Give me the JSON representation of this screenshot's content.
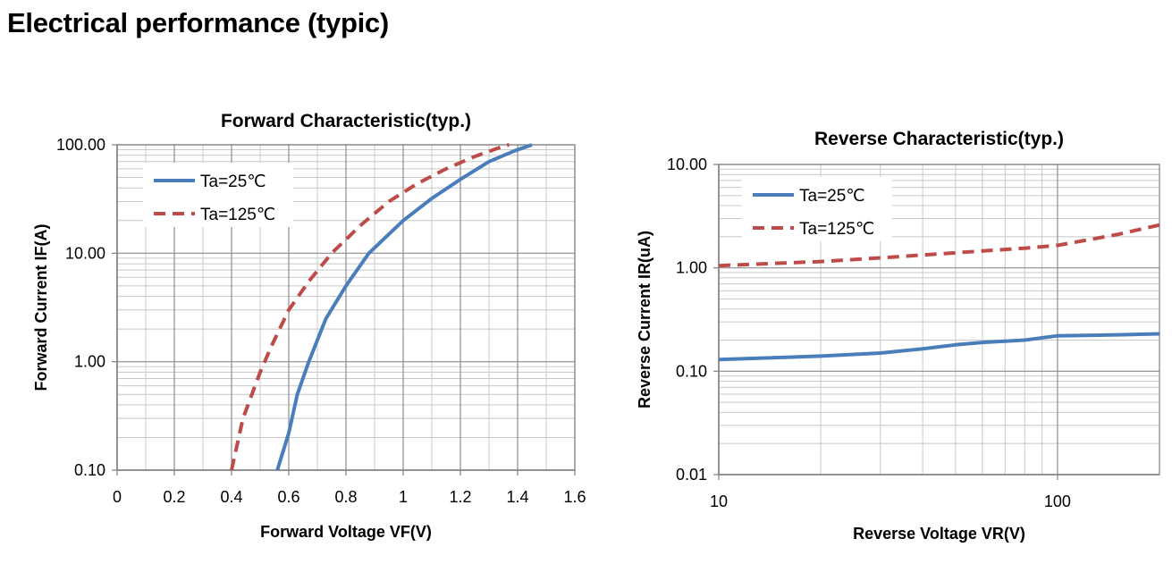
{
  "page": {
    "title": "Electrical performance (typic)"
  },
  "colors": {
    "series_25": "#4a7ebb",
    "series_125": "#be4b48",
    "grid_major": "#8c8c8c",
    "grid_minor": "#c8c8c8"
  },
  "chart_data": [
    {
      "type": "line",
      "title": "Forward Characteristic(typ.)",
      "xlabel": "Forward Voltage VF(V)",
      "ylabel": "Forward Current IF(A)",
      "xlim": [
        0,
        1.6
      ],
      "ylim": [
        0.1,
        100
      ],
      "yscale": "log",
      "grid": true,
      "legend_position": "top-left",
      "x_ticks": [
        0,
        0.2,
        0.4,
        0.6,
        0.8,
        1.0,
        1.2,
        1.4,
        1.6
      ],
      "x_tick_labels": [
        "0",
        "0.2",
        "0.4",
        "0.6",
        "0.8",
        "1",
        "1.2",
        "1.4",
        "1.6"
      ],
      "y_ticks": [
        0.1,
        1,
        10,
        100
      ],
      "y_tick_labels": [
        "0.10",
        "1.00",
        "10.00",
        "100.00"
      ],
      "series": [
        {
          "name": "Ta=25℃",
          "style": "solid",
          "color": "#4a7ebb",
          "points": [
            [
              0.56,
              0.1
            ],
            [
              0.6,
              0.22
            ],
            [
              0.63,
              0.5
            ],
            [
              0.67,
              1.0
            ],
            [
              0.73,
              2.5
            ],
            [
              0.8,
              5.0
            ],
            [
              0.88,
              10.0
            ],
            [
              1.0,
              20.0
            ],
            [
              1.1,
              32.0
            ],
            [
              1.2,
              48.0
            ],
            [
              1.3,
              70.0
            ],
            [
              1.39,
              88.0
            ],
            [
              1.45,
              100.0
            ]
          ]
        },
        {
          "name": "Ta=125℃",
          "style": "dashed",
          "color": "#be4b48",
          "points": [
            [
              0.4,
              0.1
            ],
            [
              0.44,
              0.3
            ],
            [
              0.5,
              0.8
            ],
            [
              0.54,
              1.4
            ],
            [
              0.6,
              3.0
            ],
            [
              0.67,
              5.5
            ],
            [
              0.75,
              10.0
            ],
            [
              0.85,
              18.0
            ],
            [
              0.95,
              30.0
            ],
            [
              1.05,
              44.0
            ],
            [
              1.15,
              60.0
            ],
            [
              1.25,
              78.0
            ],
            [
              1.35,
              97.0
            ],
            [
              1.37,
              100.0
            ]
          ]
        }
      ]
    },
    {
      "type": "line",
      "title": "Reverse Characteristic(typ.)",
      "xlabel": "Reverse Voltage VR(V)",
      "ylabel": "Reverse Current IR(uA)",
      "xlim": [
        10,
        200
      ],
      "ylim": [
        0.01,
        10
      ],
      "xscale": "log",
      "yscale": "log",
      "grid": true,
      "legend_position": "top-left",
      "x_ticks": [
        10,
        100
      ],
      "x_tick_labels": [
        "10",
        "100"
      ],
      "y_ticks": [
        0.01,
        0.1,
        1,
        10
      ],
      "y_tick_labels": [
        "0.01",
        "0.10",
        "1.00",
        "10.00"
      ],
      "series": [
        {
          "name": "Ta=25℃",
          "style": "solid",
          "color": "#4a7ebb",
          "points": [
            [
              10,
              0.13
            ],
            [
              20,
              0.14
            ],
            [
              30,
              0.15
            ],
            [
              40,
              0.165
            ],
            [
              50,
              0.18
            ],
            [
              60,
              0.19
            ],
            [
              80,
              0.2
            ],
            [
              100,
              0.22
            ],
            [
              150,
              0.225
            ],
            [
              200,
              0.23
            ]
          ]
        },
        {
          "name": "Ta=125℃",
          "style": "dashed",
          "color": "#be4b48",
          "points": [
            [
              10,
              1.05
            ],
            [
              20,
              1.15
            ],
            [
              30,
              1.25
            ],
            [
              50,
              1.4
            ],
            [
              80,
              1.55
            ],
            [
              100,
              1.65
            ],
            [
              150,
              2.1
            ],
            [
              200,
              2.6
            ]
          ]
        }
      ]
    }
  ]
}
